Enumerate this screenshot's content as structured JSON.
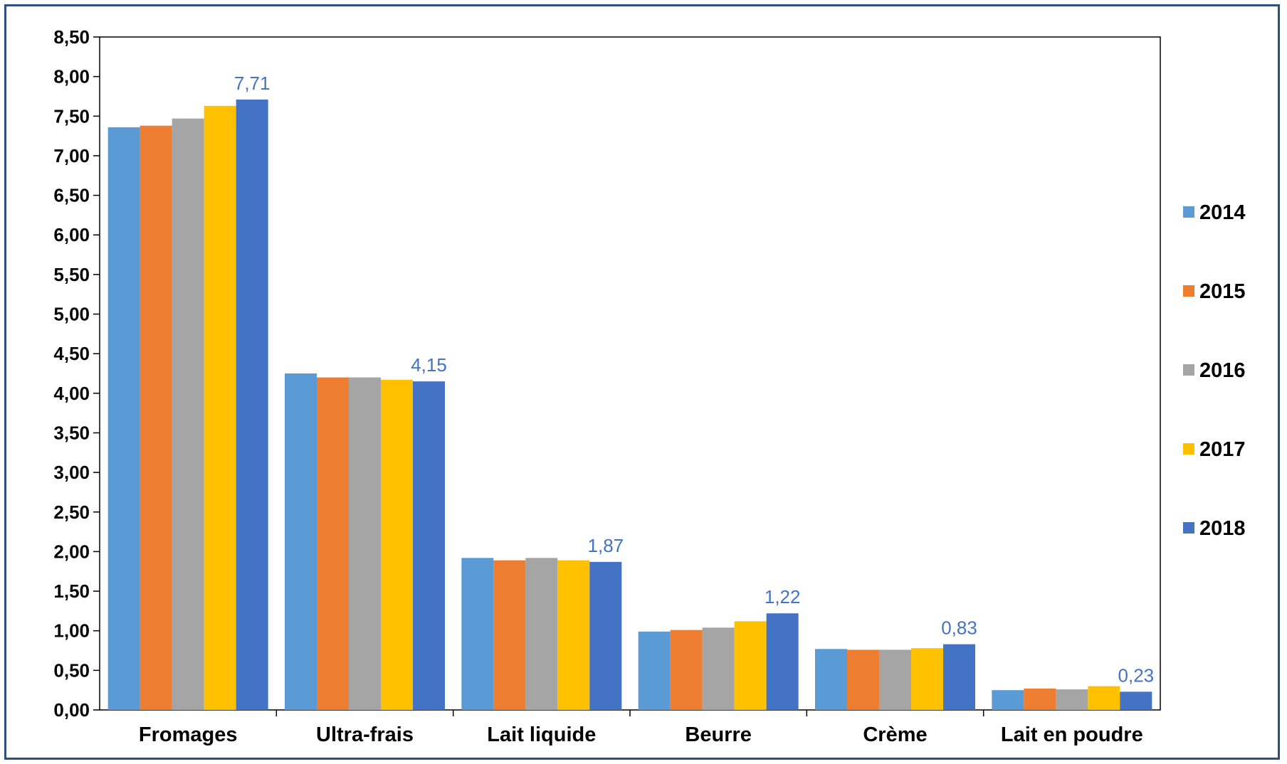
{
  "chart_data": {
    "type": "bar",
    "title": "",
    "xlabel": "",
    "ylabel": "",
    "categories": [
      "Fromages",
      "Ultra-frais",
      "Lait liquide",
      "Beurre",
      "Crème",
      "Lait en poudre"
    ],
    "series": [
      {
        "name": "2014",
        "color": "#5B9BD5",
        "values": [
          7.36,
          4.25,
          1.92,
          0.99,
          0.77,
          0.25
        ]
      },
      {
        "name": "2015",
        "color": "#ED7D31",
        "values": [
          7.38,
          4.2,
          1.89,
          1.01,
          0.76,
          0.27
        ]
      },
      {
        "name": "2016",
        "color": "#A5A5A5",
        "values": [
          7.47,
          4.2,
          1.92,
          1.04,
          0.76,
          0.26
        ]
      },
      {
        "name": "2017",
        "color": "#FFC000",
        "values": [
          7.63,
          4.17,
          1.89,
          1.12,
          0.78,
          0.3
        ]
      },
      {
        "name": "2018",
        "color": "#4472C4",
        "values": [
          7.71,
          4.15,
          1.87,
          1.22,
          0.83,
          0.23
        ]
      }
    ],
    "data_labels": [
      "7,71",
      "4,15",
      "1,87",
      "1,22",
      "0,83",
      "0,23"
    ],
    "ylim": [
      0,
      8.5
    ],
    "yticks": [
      "0,00",
      "0,50",
      "1,00",
      "1,50",
      "2,00",
      "2,50",
      "3,00",
      "3,50",
      "4,00",
      "4,50",
      "5,00",
      "5,50",
      "6,00",
      "6,50",
      "7,00",
      "7,50",
      "8,00",
      "8,50"
    ],
    "grid": false,
    "legend_position": "right"
  }
}
